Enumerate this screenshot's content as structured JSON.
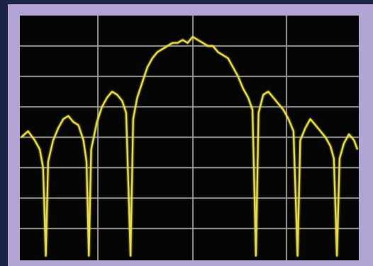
{
  "chart_data": {
    "type": "line",
    "color": "#e6dc48",
    "xlim": [
      0,
      100
    ],
    "ylim": [
      0,
      8
    ],
    "x": [
      0,
      2,
      4,
      5.5,
      6.5,
      7.3,
      8,
      9.5,
      11,
      12.5,
      14,
      15.5,
      17,
      18.5,
      19.4,
      20.1,
      20.8,
      22.5,
      24,
      25.5,
      27,
      28.5,
      30,
      31.2,
      32.5,
      33.3,
      34.5,
      36,
      37.5,
      39,
      40.5,
      42,
      43.5,
      45,
      46.5,
      48,
      49.5,
      51,
      52.5,
      54,
      55.5,
      57,
      58.5,
      60,
      61.5,
      63,
      64.5,
      66,
      67.5,
      68.8,
      69.8,
      70.6,
      72,
      73.5,
      75,
      76.5,
      78,
      79.5,
      81,
      82.2,
      83,
      84.5,
      86,
      87.5,
      89,
      90.5,
      92,
      93,
      93.9,
      94.7,
      96,
      97.5,
      99,
      100
    ],
    "values": [
      4.0,
      4.2,
      3.9,
      3.6,
      3.0,
      0.1,
      3.2,
      3.9,
      4.3,
      4.6,
      4.7,
      4.5,
      4.4,
      3.9,
      3.2,
      0.1,
      3.6,
      4.5,
      5.0,
      5.3,
      5.5,
      5.4,
      5.2,
      4.8,
      0.1,
      4.6,
      5.3,
      5.8,
      6.3,
      6.6,
      6.8,
      6.9,
      7.0,
      7.1,
      7.1,
      7.2,
      7.1,
      7.3,
      7.2,
      7.1,
      7.0,
      7.0,
      6.8,
      6.7,
      6.6,
      6.3,
      6.0,
      5.6,
      5.3,
      4.9,
      0.1,
      4.8,
      5.4,
      5.5,
      5.3,
      5.1,
      4.9,
      4.6,
      4.2,
      0.1,
      3.9,
      4.3,
      4.6,
      4.4,
      4.2,
      4.0,
      3.7,
      3.3,
      0.1,
      3.3,
      3.8,
      4.1,
      3.9,
      3.6
    ]
  }
}
